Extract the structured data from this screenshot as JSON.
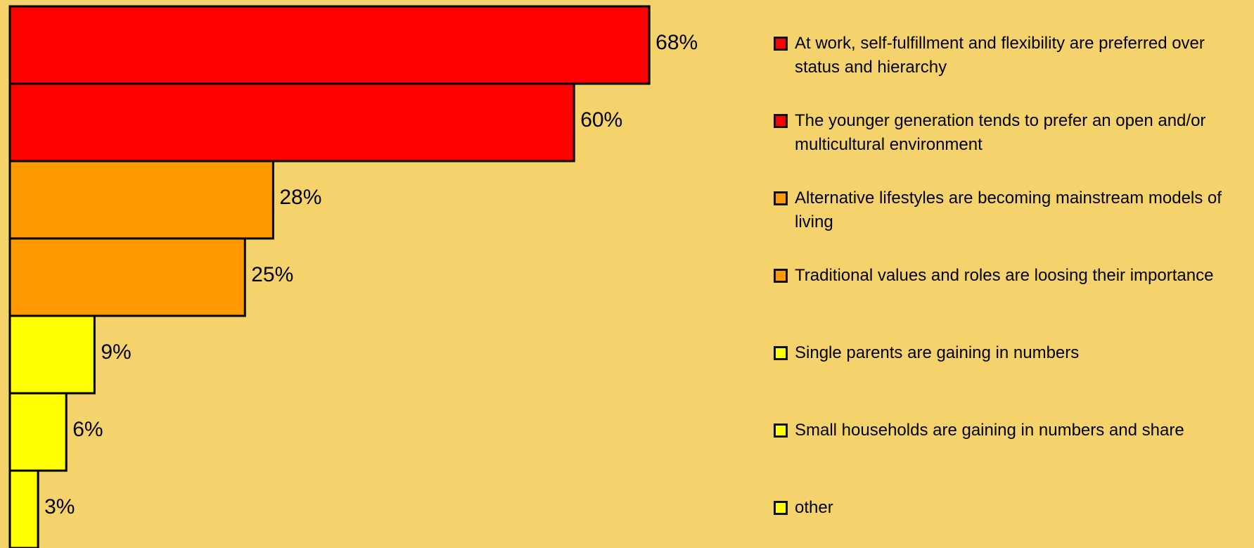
{
  "chart_data": {
    "type": "bar",
    "orientation": "horizontal",
    "categories": [
      "At work, self-fulfillment and flexibility are preferred over status and hierarchy",
      "The younger generation tends to prefer an open and/or multicultural environment",
      "Alternative lifestyles are becoming mainstream models of living",
      "Traditional values and roles are loosing their importance",
      "Single parents are gaining in numbers",
      "Small households are gaining in numbers and share",
      "other"
    ],
    "values": [
      68,
      60,
      28,
      25,
      9,
      6,
      3
    ],
    "value_labels": [
      "68%",
      "60%",
      "28%",
      "25%",
      "9%",
      "6%",
      "3%"
    ],
    "colors": [
      "#ff0000",
      "#ff0000",
      "#ff9900",
      "#ff9900",
      "#ffff00",
      "#ffff00",
      "#ffff00"
    ],
    "legend": "right"
  }
}
